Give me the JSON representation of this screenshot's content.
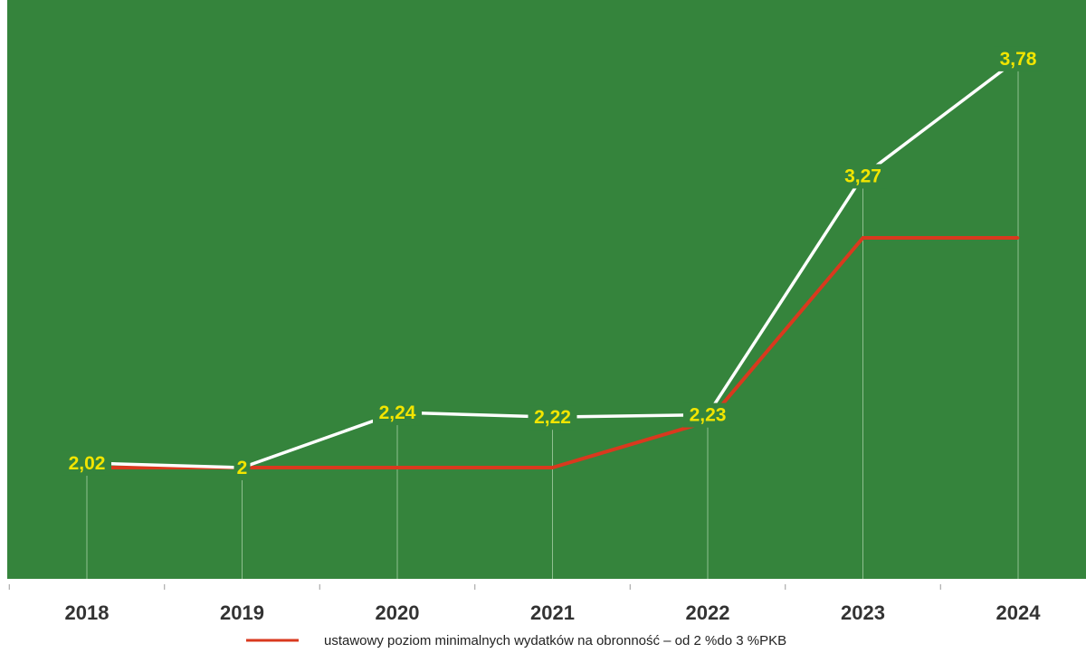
{
  "chart_data": {
    "type": "line",
    "categories": [
      "2018",
      "2019",
      "2020",
      "2021",
      "2022",
      "2023",
      "2024"
    ],
    "series": [
      {
        "name": "",
        "values": [
          2.02,
          2,
          2.24,
          2.22,
          2.23,
          3.27,
          3.78
        ],
        "labels": [
          "2,02",
          "2",
          "2,24",
          "2,22",
          "2,23",
          "3,27",
          "3,78"
        ],
        "color": "#ffffff"
      },
      {
        "name": "ustawowy poziom minimalnych wydatków na obronność – od 2 %do 3 %PKB",
        "values": [
          2,
          2,
          2,
          2,
          2.2,
          3,
          3
        ],
        "color": "#d9391e"
      }
    ],
    "ylim": [
      1.5,
      4.0
    ],
    "grid": false,
    "legend_position": "bottom",
    "colors": {
      "plot_background": "#35843c",
      "data_label": "#f2e500",
      "drop_line": "#8fbf8f",
      "tick_text": "#333333"
    }
  }
}
